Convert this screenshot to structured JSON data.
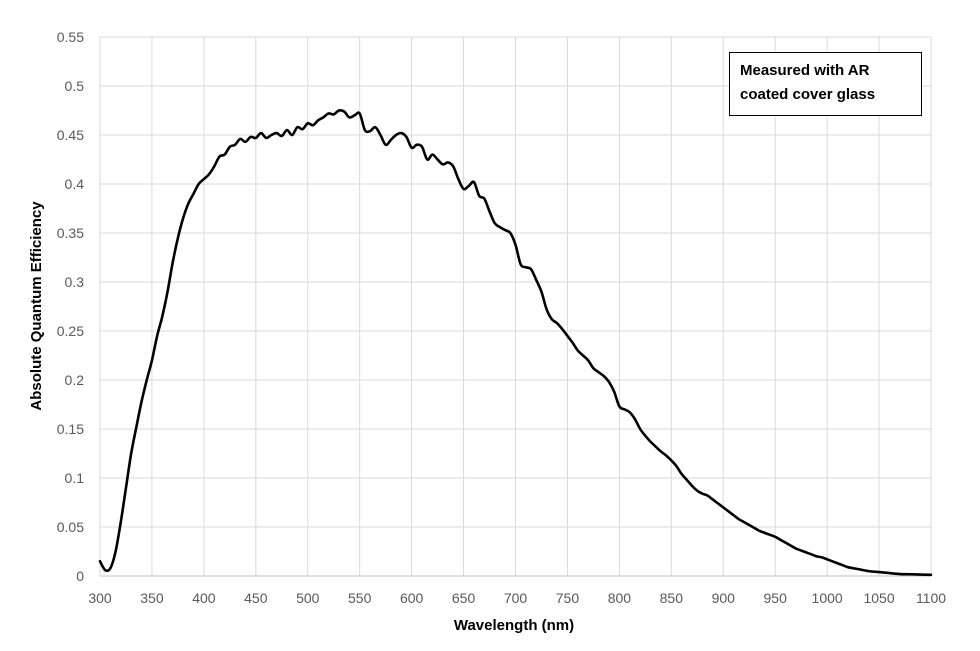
{
  "chart_data": {
    "type": "line",
    "title": "",
    "xlabel": "Wavelength (nm)",
    "ylabel": "Absolute Quantum  Efficiency",
    "xlim": [
      300,
      1100
    ],
    "ylim": [
      0,
      0.55
    ],
    "xticks": [
      "300",
      "350",
      "400",
      "450",
      "500",
      "550",
      "600",
      "650",
      "700",
      "750",
      "800",
      "850",
      "900",
      "950",
      "1000",
      "1050",
      "1100"
    ],
    "yticks": [
      "0",
      "0.05",
      "0.1",
      "0.15",
      "0.2",
      "0.25",
      "0.3",
      "0.35",
      "0.4",
      "0.45",
      "0.5",
      "0.55"
    ],
    "grid": true,
    "legend": "none",
    "annotation": [
      "Measured with AR",
      "coated cover glass"
    ],
    "line_color": "#000000",
    "series": [
      {
        "x": [
          300,
          305,
          310,
          315,
          320,
          325,
          330,
          335,
          340,
          345,
          350,
          355,
          360,
          365,
          370,
          375,
          380,
          385,
          390,
          395,
          400,
          405,
          410,
          415,
          420,
          425,
          430,
          435,
          440,
          445,
          450,
          455,
          460,
          465,
          470,
          475,
          480,
          485,
          490,
          495,
          500,
          505,
          510,
          515,
          520,
          525,
          530,
          535,
          540,
          545,
          550,
          555,
          560,
          565,
          570,
          575,
          580,
          585,
          590,
          595,
          600,
          605,
          610,
          615,
          620,
          625,
          630,
          635,
          640,
          645,
          650,
          655,
          660,
          665,
          670,
          675,
          680,
          685,
          690,
          695,
          700,
          705,
          710,
          715,
          720,
          725,
          730,
          735,
          740,
          745,
          750,
          755,
          760,
          765,
          770,
          775,
          780,
          785,
          790,
          795,
          800,
          805,
          810,
          815,
          820,
          825,
          830,
          835,
          840,
          845,
          850,
          855,
          860,
          865,
          870,
          875,
          880,
          885,
          890,
          895,
          900,
          905,
          910,
          915,
          920,
          925,
          930,
          935,
          940,
          945,
          950,
          955,
          960,
          965,
          970,
          975,
          980,
          985,
          990,
          995,
          1000,
          1005,
          1010,
          1015,
          1020,
          1030,
          1040,
          1050,
          1060,
          1070,
          1080,
          1090,
          1100
        ],
        "values": [
          0.015,
          0.006,
          0.008,
          0.025,
          0.055,
          0.09,
          0.125,
          0.152,
          0.178,
          0.2,
          0.22,
          0.245,
          0.265,
          0.29,
          0.32,
          0.345,
          0.365,
          0.38,
          0.39,
          0.4,
          0.405,
          0.41,
          0.418,
          0.428,
          0.43,
          0.438,
          0.44,
          0.446,
          0.443,
          0.448,
          0.447,
          0.452,
          0.447,
          0.45,
          0.452,
          0.449,
          0.455,
          0.45,
          0.458,
          0.456,
          0.462,
          0.46,
          0.465,
          0.468,
          0.472,
          0.471,
          0.475,
          0.474,
          0.468,
          0.47,
          0.472,
          0.455,
          0.454,
          0.458,
          0.45,
          0.44,
          0.445,
          0.45,
          0.452,
          0.448,
          0.437,
          0.44,
          0.438,
          0.425,
          0.43,
          0.425,
          0.42,
          0.422,
          0.418,
          0.405,
          0.395,
          0.398,
          0.402,
          0.388,
          0.385,
          0.372,
          0.36,
          0.356,
          0.353,
          0.35,
          0.338,
          0.318,
          0.315,
          0.313,
          0.302,
          0.29,
          0.272,
          0.262,
          0.258,
          0.252,
          0.245,
          0.238,
          0.23,
          0.225,
          0.22,
          0.212,
          0.208,
          0.204,
          0.198,
          0.188,
          0.173,
          0.17,
          0.167,
          0.16,
          0.15,
          0.143,
          0.137,
          0.132,
          0.127,
          0.123,
          0.118,
          0.112,
          0.104,
          0.098,
          0.092,
          0.087,
          0.084,
          0.082,
          0.078,
          0.074,
          0.07,
          0.066,
          0.062,
          0.058,
          0.055,
          0.052,
          0.049,
          0.046,
          0.044,
          0.042,
          0.04,
          0.037,
          0.034,
          0.031,
          0.028,
          0.026,
          0.024,
          0.022,
          0.02,
          0.019,
          0.017,
          0.015,
          0.013,
          0.011,
          0.009,
          0.007,
          0.005,
          0.004,
          0.003,
          0.002,
          0.0018,
          0.0015,
          0.0012
        ]
      }
    ]
  }
}
